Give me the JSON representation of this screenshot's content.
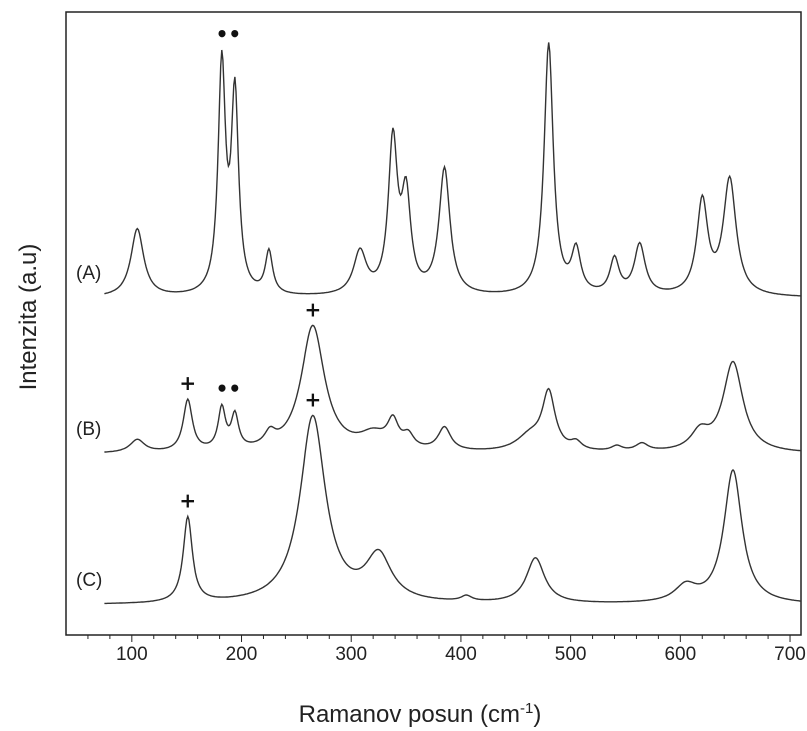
{
  "chart_data": {
    "type": "line",
    "title": "",
    "xlabel": "Ramanov posun (cm",
    "xlabel_sup": "-1",
    "xlabel_close": ")",
    "ylabel": "Intenzita (a.u)",
    "xlim": [
      40,
      710
    ],
    "x_ticks": [
      100,
      200,
      300,
      400,
      500,
      600,
      700
    ],
    "x_minor_step": 20,
    "y_ticks_shown": false,
    "grid": false,
    "series": [
      {
        "name": "(A)",
        "x_start": 75,
        "baseline": 0,
        "peaks": [
          {
            "center": 105,
            "height": 0.27,
            "width": 7
          },
          {
            "center": 182,
            "height": 0.9,
            "width": 4
          },
          {
            "center": 194,
            "height": 0.78,
            "width": 4
          },
          {
            "center": 225,
            "height": 0.17,
            "width": 4
          },
          {
            "center": 308,
            "height": 0.17,
            "width": 7
          },
          {
            "center": 338,
            "height": 0.6,
            "width": 5
          },
          {
            "center": 350,
            "height": 0.37,
            "width": 5
          },
          {
            "center": 385,
            "height": 0.5,
            "width": 6
          },
          {
            "center": 480,
            "height": 1.0,
            "width": 5
          },
          {
            "center": 505,
            "height": 0.17,
            "width": 5
          },
          {
            "center": 540,
            "height": 0.14,
            "width": 5
          },
          {
            "center": 563,
            "height": 0.2,
            "width": 6
          },
          {
            "center": 620,
            "height": 0.37,
            "width": 6
          },
          {
            "center": 645,
            "height": 0.46,
            "width": 7
          }
        ]
      },
      {
        "name": "(B)",
        "x_start": 75,
        "baseline": 0,
        "peaks": [
          {
            "center": 105,
            "height": 0.05,
            "width": 8
          },
          {
            "center": 151,
            "height": 0.2,
            "width": 5
          },
          {
            "center": 182,
            "height": 0.16,
            "width": 4
          },
          {
            "center": 194,
            "height": 0.13,
            "width": 4
          },
          {
            "center": 226,
            "height": 0.05,
            "width": 6
          },
          {
            "center": 265,
            "height": 0.49,
            "width": 13
          },
          {
            "center": 320,
            "height": 0.06,
            "width": 15
          },
          {
            "center": 338,
            "height": 0.1,
            "width": 6
          },
          {
            "center": 352,
            "height": 0.05,
            "width": 6
          },
          {
            "center": 385,
            "height": 0.09,
            "width": 7
          },
          {
            "center": 463,
            "height": 0.06,
            "width": 15
          },
          {
            "center": 480,
            "height": 0.22,
            "width": 7
          },
          {
            "center": 505,
            "height": 0.03,
            "width": 6
          },
          {
            "center": 542,
            "height": 0.02,
            "width": 6
          },
          {
            "center": 565,
            "height": 0.03,
            "width": 7
          },
          {
            "center": 618,
            "height": 0.07,
            "width": 10
          },
          {
            "center": 648,
            "height": 0.35,
            "width": 11
          }
        ]
      },
      {
        "name": "(C)",
        "x_start": 75,
        "baseline": 0,
        "peaks": [
          {
            "center": 151,
            "height": 0.32,
            "width": 5
          },
          {
            "center": 265,
            "height": 0.7,
            "width": 14
          },
          {
            "center": 325,
            "height": 0.17,
            "width": 14
          },
          {
            "center": 405,
            "height": 0.02,
            "width": 6
          },
          {
            "center": 468,
            "height": 0.17,
            "width": 10
          },
          {
            "center": 605,
            "height": 0.06,
            "width": 12
          },
          {
            "center": 648,
            "height": 0.5,
            "width": 10
          }
        ]
      }
    ],
    "markers": [
      {
        "series": 0,
        "x": 188,
        "symbol": "••"
      },
      {
        "series": 1,
        "x": 151,
        "symbol": "+"
      },
      {
        "series": 1,
        "x": 188,
        "symbol": "••"
      },
      {
        "series": 1,
        "x": 265,
        "symbol": "+"
      },
      {
        "series": 2,
        "x": 151,
        "symbol": "+"
      },
      {
        "series": 2,
        "x": 265,
        "symbol": "+"
      }
    ]
  }
}
